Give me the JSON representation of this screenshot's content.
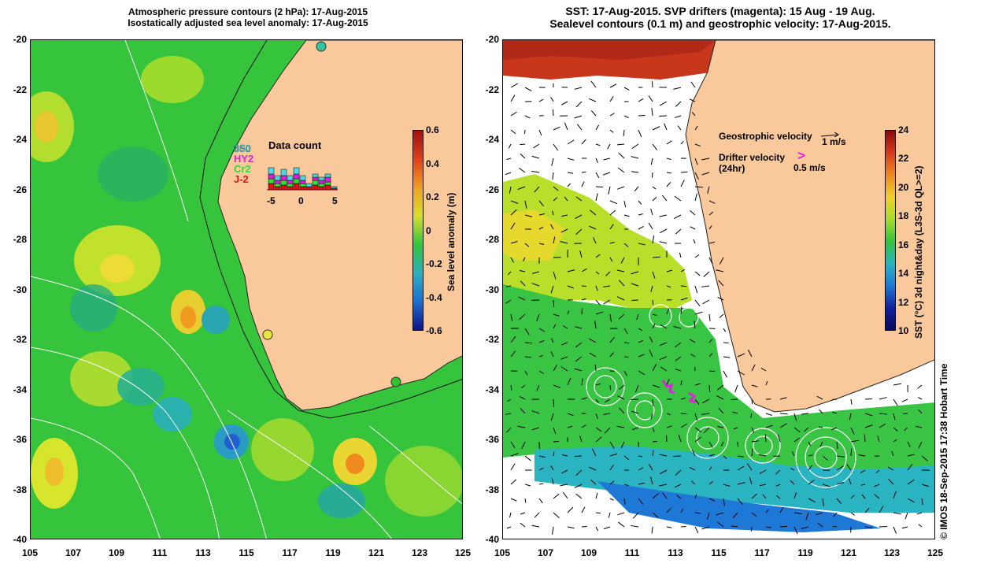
{
  "left_title": {
    "line1": "Atmospheric pressure contours (2 hPa): 17-Aug-2015",
    "line2": "Isostatically adjusted sea level anomaly: 17-Aug-2015"
  },
  "right_title": {
    "line1": "SST: 17-Aug-2015. SVP drifters (magenta): 15 Aug - 19 Aug.",
    "line2": "Sealevel contours (0.1 m) and geostrophic velocity: 17-Aug-2015."
  },
  "axes": {
    "y_ticks": [
      "-20",
      "-22",
      "-24",
      "-26",
      "-28",
      "-30",
      "-32",
      "-34",
      "-36",
      "-38",
      "-40"
    ],
    "x_ticks": [
      "105",
      "107",
      "109",
      "111",
      "113",
      "115",
      "117",
      "119",
      "121",
      "123",
      "125"
    ]
  },
  "left_colorbar": {
    "label": "Sea level anomaly (m)",
    "ticks": [
      "0.6",
      "0.4",
      "0.2",
      "0",
      "-0.2",
      "-0.4",
      "-0.6"
    ]
  },
  "right_colorbar": {
    "label": "SST (°C) 3d night&day (L3S-3d QL>=2)",
    "ticks": [
      "24",
      "22",
      "20",
      "18",
      "16",
      "14",
      "12",
      "10"
    ]
  },
  "data_count": {
    "title": "Data count",
    "legend": [
      {
        "name": "350",
        "color": "#4ad9e6"
      },
      {
        "name": "HY2",
        "color": "#e020e0"
      },
      {
        "name": "Cr2",
        "color": "#33dd33"
      },
      {
        "name": "J-2",
        "color": "#dd1111"
      }
    ],
    "x_ticks": [
      "-5",
      "0",
      "5"
    ]
  },
  "right_legend": {
    "geostrophic_label": "Geostrophic velocity",
    "geostrophic_scale": "1 m/s",
    "drifter_label": "Drifter velocity",
    "drifter_period": "(24hr)",
    "drifter_symbol": ">",
    "drifter_scale": "0.5 m/s"
  },
  "credit": "© IMOS 18-Sep-2015 17:38 Hobart Time",
  "colors": {
    "land": "#f9c89b",
    "ocean_green": "#33c43a",
    "warm_yellow": "#d8e82a",
    "warm_orange": "#f0a020",
    "cool_cyan": "#2bb3c0",
    "deep_blue": "#1e5fd0",
    "sst_red": "#c8361c",
    "drifter_magenta": "#e020e0"
  }
}
